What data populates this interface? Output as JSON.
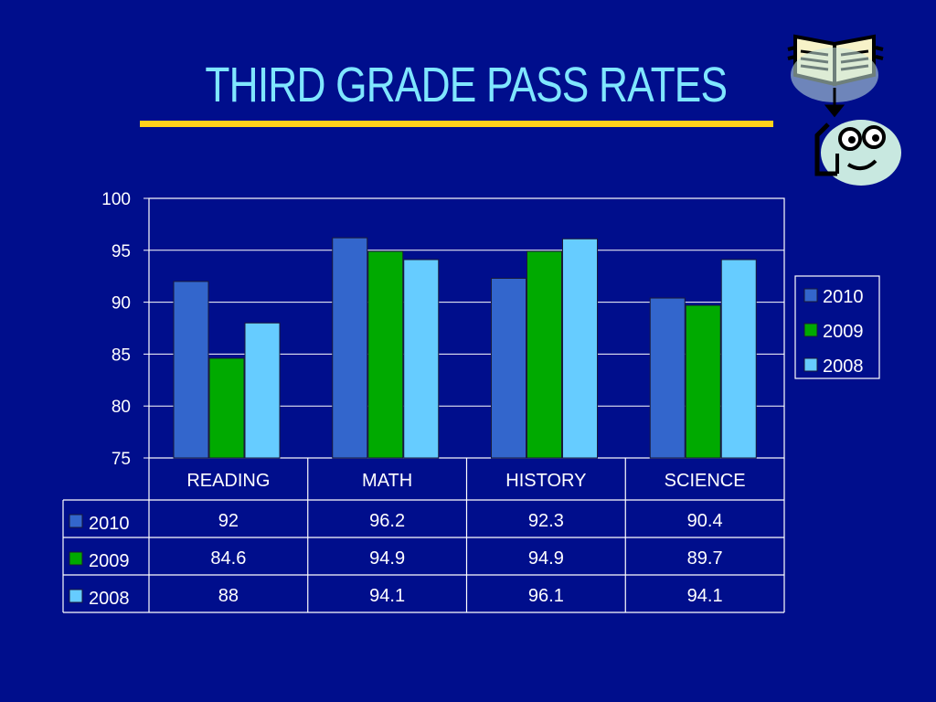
{
  "slide": {
    "title": "THIRD GRADE PASS RATES"
  },
  "clipart": {
    "icon": "book-to-reader-icon",
    "colors": {
      "bubble": "#c8e8e0",
      "ink": "#000000",
      "paper": "#f7f2c8"
    }
  },
  "colors": {
    "background": "#000e8c",
    "title": "#7fe6ff",
    "rule": "#ffd21a",
    "grid": "#ffffff",
    "text": "#ffffff"
  },
  "chart_data": {
    "type": "bar",
    "categories": [
      "READING",
      "MATH",
      "HISTORY",
      "SCIENCE"
    ],
    "series": [
      {
        "name": "2010",
        "color": "#3366cc",
        "values": [
          92,
          96.2,
          92.3,
          90.4
        ]
      },
      {
        "name": "2009",
        "color": "#00aa00",
        "values": [
          84.6,
          94.9,
          94.9,
          89.7
        ]
      },
      {
        "name": "2008",
        "color": "#66ccff",
        "values": [
          88,
          94.1,
          96.1,
          94.1
        ]
      }
    ],
    "ylim": [
      75,
      100
    ],
    "yticks": [
      75,
      80,
      85,
      90,
      95,
      100
    ],
    "grid": true,
    "legend": "right",
    "data_table": true
  }
}
